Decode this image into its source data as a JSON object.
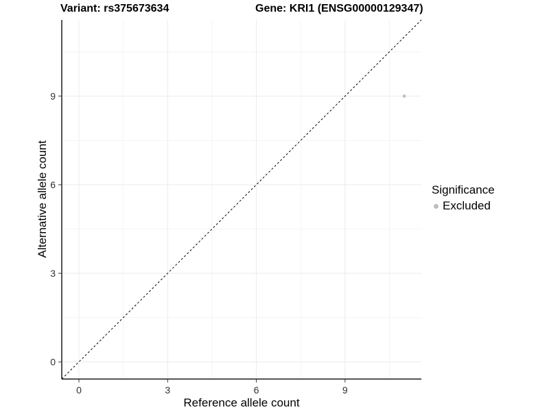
{
  "figure": {
    "title_left": "Variant: rs375673634",
    "title_right": "Gene: KRI1 (ENSG00000129347)"
  },
  "chart_data": {
    "type": "scatter",
    "title": "Variant: rs375673634   Gene: KRI1 (ENSG00000129347)",
    "xlabel": "Reference allele count",
    "ylabel": "Alternative allele count",
    "xlim": [
      -0.58,
      11.58
    ],
    "ylim": [
      -0.58,
      11.58
    ],
    "x_major_ticks": [
      0,
      3,
      6,
      9
    ],
    "y_major_ticks": [
      0,
      3,
      6,
      9
    ],
    "x_minor_ticks": [
      1.5,
      4.5,
      7.5,
      10.5
    ],
    "y_minor_ticks": [
      1.5,
      4.5,
      7.5,
      10.5
    ],
    "grid": "major+minor",
    "reference_line": {
      "style": "dashed",
      "slope": 1,
      "intercept": 0,
      "color": "#000000"
    },
    "series": [
      {
        "name": "Excluded",
        "color": "#bebebe",
        "point_radius": 2.3,
        "points": [
          {
            "x": 11,
            "y": 9
          }
        ]
      }
    ],
    "legend": {
      "title": "Significance",
      "position": "right",
      "items": [
        {
          "label": "Excluded",
          "color": "#bebebe"
        }
      ]
    },
    "colors": {
      "background": "#ffffff",
      "grid_major": "#ebebeb",
      "grid_minor": "#f4f4f4",
      "axis_line": "#1c1c1c",
      "tick_mark": "#333333",
      "tick_label": "#303030"
    }
  }
}
